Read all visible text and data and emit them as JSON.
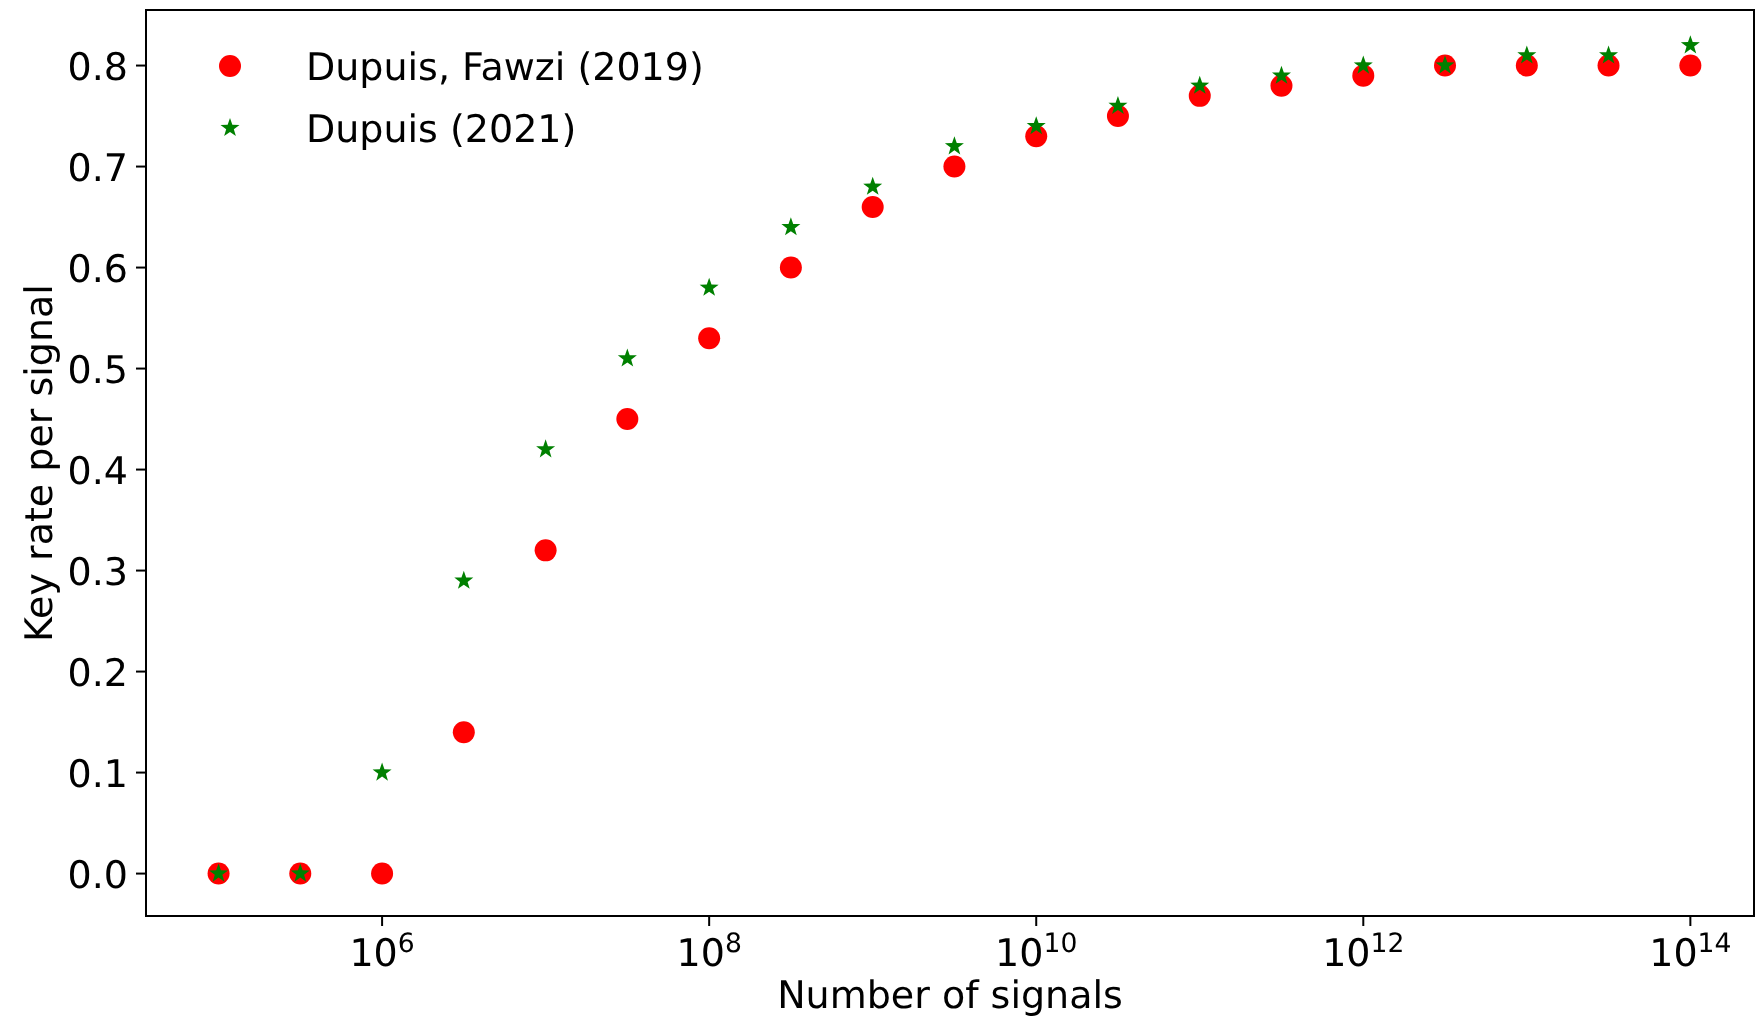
{
  "chart_data": {
    "type": "scatter",
    "xlabel": "Number of signals",
    "ylabel": "Key rate per signal",
    "log": "x",
    "x": [
      100000.0,
      316000.0,
      1000000.0,
      3160000.0,
      10000000.0,
      31600000.0,
      100000000.0,
      316000000.0,
      1000000000.0,
      3160000000.0,
      10000000000.0,
      31600000000.0,
      100000000000.0,
      316000000000.0,
      1000000000000.0,
      3160000000000.0,
      10000000000000.0,
      31600000000000.0,
      100000000000000.0
    ],
    "series": [
      {
        "name": "Dupuis, Fawzi (2019)",
        "color": "#ff0000",
        "marker": "circle",
        "values": [
          0,
          0,
          0,
          0.14,
          0.32,
          0.45,
          0.53,
          0.6,
          0.66,
          0.7,
          0.73,
          0.75,
          0.77,
          0.78,
          0.79,
          0.8,
          0.8,
          0.8,
          0.8
        ]
      },
      {
        "name": "Dupuis (2021)",
        "color": "#008000",
        "marker": "star",
        "values": [
          0,
          0,
          0.1,
          0.29,
          0.42,
          0.51,
          0.58,
          0.64,
          0.68,
          0.72,
          0.74,
          0.76,
          0.78,
          0.79,
          0.8,
          0.8,
          0.81,
          0.81,
          0.82
        ]
      }
    ],
    "xlim": [
      36000.0,
      245000000000000.0
    ],
    "ylim": [
      -0.042,
      0.855
    ],
    "xticks": [
      {
        "value": 1000000.0,
        "label": "10$^{6}$"
      },
      {
        "value": 100000000.0,
        "label": "10$^{8}$"
      },
      {
        "value": 10000000000.0,
        "label": "10$^{10}$"
      },
      {
        "value": 1000000000000.0,
        "label": "10$^{12}$"
      },
      {
        "value": 100000000000000.0,
        "label": "10$^{14}$"
      }
    ],
    "yticks": [
      {
        "value": 0,
        "label": "0.0"
      },
      {
        "value": 0.1,
        "label": "0.1"
      },
      {
        "value": 0.2,
        "label": "0.2"
      },
      {
        "value": 0.3,
        "label": "0.3"
      },
      {
        "value": 0.4,
        "label": "0.4"
      },
      {
        "value": 0.5,
        "label": "0.5"
      },
      {
        "value": 0.6,
        "label": "0.6"
      },
      {
        "value": 0.7,
        "label": "0.7"
      },
      {
        "value": 0.8,
        "label": "0.8"
      }
    ],
    "grid": false,
    "legend": "top left"
  }
}
